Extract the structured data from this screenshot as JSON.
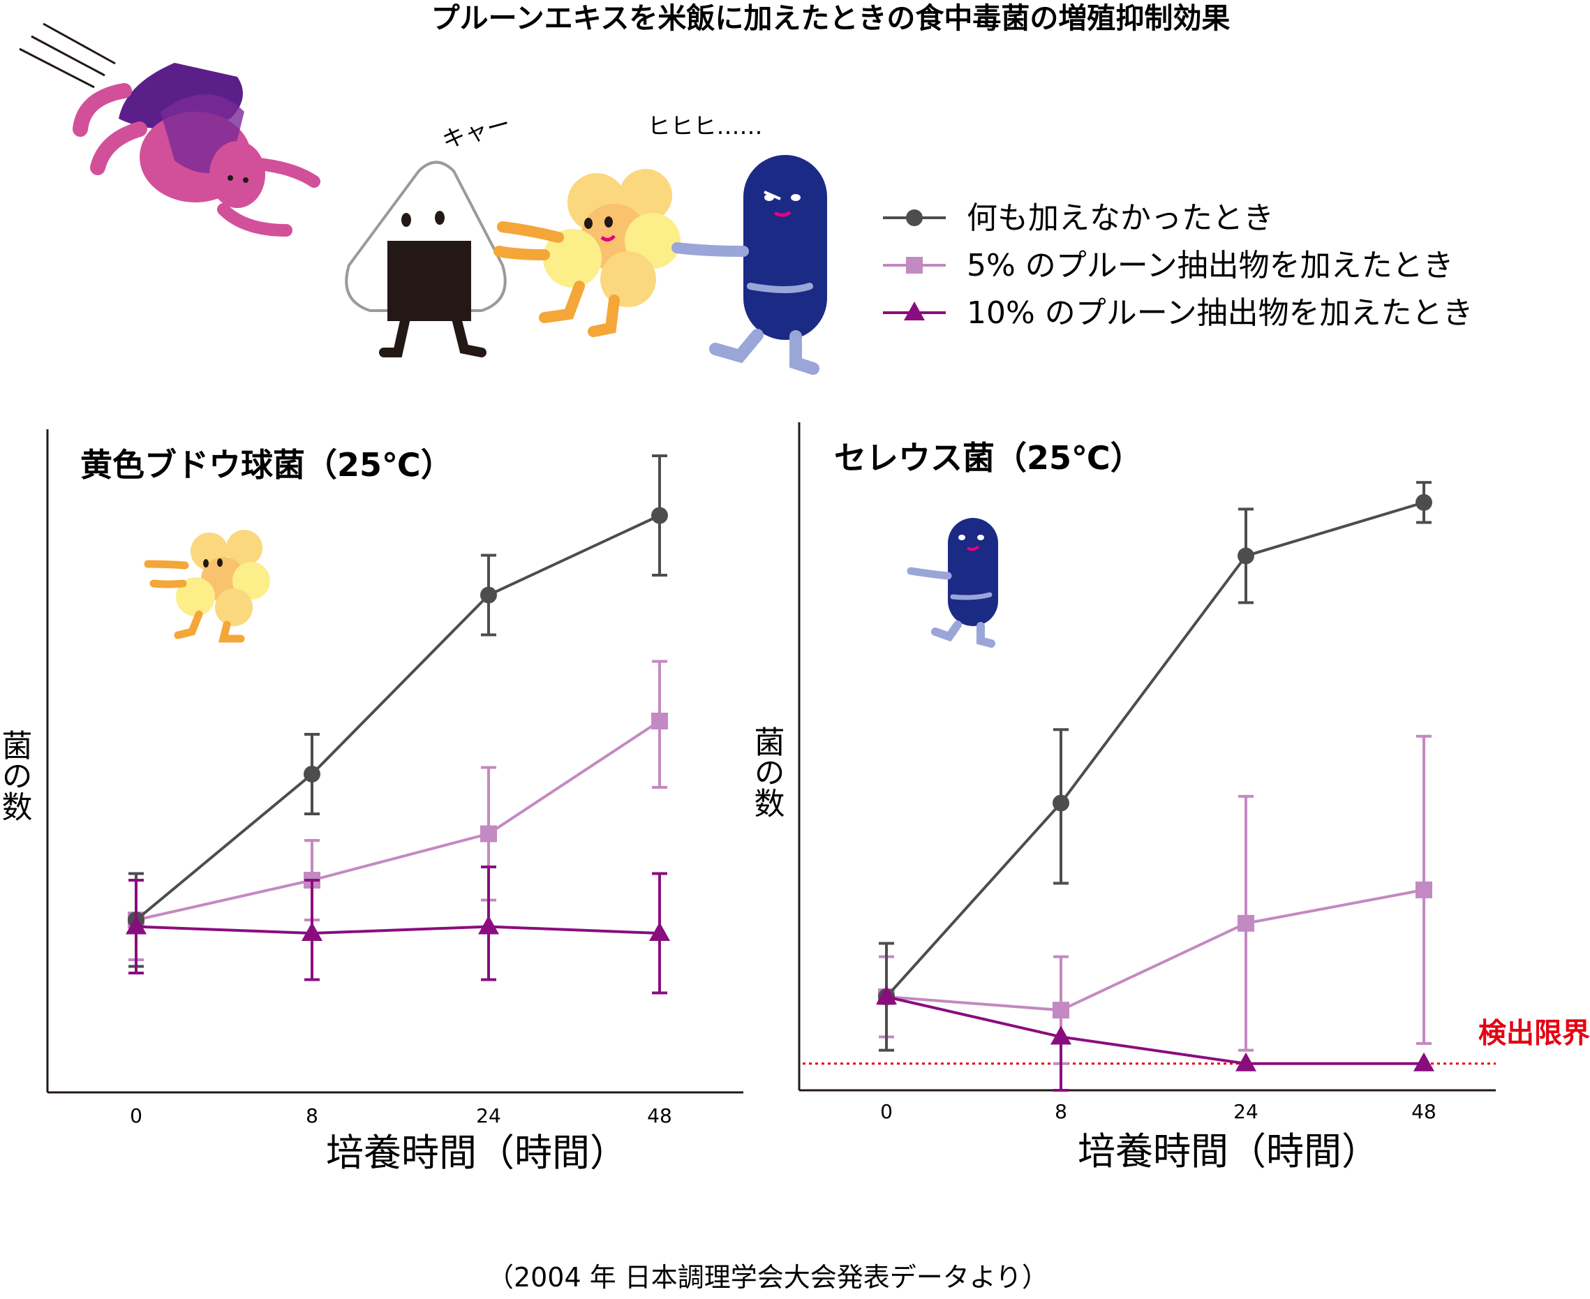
{
  "title": "プルーンエキスを米飯に加えたときの食中毒菌の増殖抑制効果",
  "speech": {
    "onigiri": "キャー",
    "bacteria": "ヒヒヒ……"
  },
  "legend": [
    {
      "label": "何も加えなかったとき",
      "color": "#4d4d4d",
      "marker": "circle"
    },
    {
      "label": "5% のプルーン抽出物を加えたとき",
      "color": "#c389c2",
      "marker": "square"
    },
    {
      "label": "10% のプルーン抽出物を加えたとき",
      "color": "#8a0d7f",
      "marker": "triangle"
    }
  ],
  "source": "（2004 年 日本調理学会大会発表データより）",
  "chart_data": [
    {
      "type": "line",
      "title": "黄色ブドウ球菌（25℃）",
      "xlabel": "培養時間（時間）",
      "ylabel": "菌の数",
      "categories": [
        "0",
        "8",
        "24",
        "48"
      ],
      "ylim": [
        0,
        100
      ],
      "y_tick_labels": "none",
      "series": [
        {
          "name": "何も加えなかったとき",
          "color": "#4d4d4d",
          "marker": "circle",
          "values": [
            26,
            48,
            75,
            87
          ],
          "err_low": [
            7,
            6,
            6,
            9
          ],
          "err_high": [
            7,
            6,
            6,
            9
          ]
        },
        {
          "name": "5% のプルーン抽出物を加えたとき",
          "color": "#c389c2",
          "marker": "square",
          "values": [
            26,
            32,
            39,
            56
          ],
          "err_low": [
            6,
            6,
            10,
            10
          ],
          "err_high": [
            6,
            6,
            10,
            9
          ]
        },
        {
          "name": "10% のプルーン抽出物を加えたとき",
          "color": "#8a0d7f",
          "marker": "triangle",
          "values": [
            25,
            24,
            25,
            24
          ],
          "err_low": [
            7,
            7,
            8,
            9
          ],
          "err_high": [
            7,
            8,
            9,
            9
          ]
        }
      ]
    },
    {
      "type": "line",
      "title": "セレウス菌（25℃）",
      "xlabel": "培養時間（時間）",
      "ylabel": "菌の数",
      "categories": [
        "0",
        "8",
        "24",
        "48"
      ],
      "ylim": [
        0,
        100
      ],
      "y_tick_labels": "none",
      "detection_limit": {
        "value": 4,
        "label": "検出限界",
        "color": "#e60012"
      },
      "series": [
        {
          "name": "何も加えなかったとき",
          "color": "#4d4d4d",
          "marker": "circle",
          "values": [
            14,
            43,
            80,
            88
          ],
          "err_low": [
            8,
            12,
            7,
            3
          ],
          "err_high": [
            8,
            11,
            7,
            3
          ]
        },
        {
          "name": "5% のプルーン抽出物を加えたとき",
          "color": "#c389c2",
          "marker": "square",
          "values": [
            14,
            12,
            25,
            30
          ],
          "err_low": [
            6,
            8,
            19,
            23
          ],
          "err_high": [
            6,
            8,
            19,
            23
          ]
        },
        {
          "name": "10% のプルーン抽出物を加えたとき",
          "color": "#8a0d7f",
          "marker": "triangle",
          "values": [
            14,
            8,
            4,
            4
          ],
          "err_low": [
            0,
            8,
            0,
            0
          ],
          "err_high": [
            0,
            0,
            0,
            0
          ]
        }
      ]
    }
  ]
}
